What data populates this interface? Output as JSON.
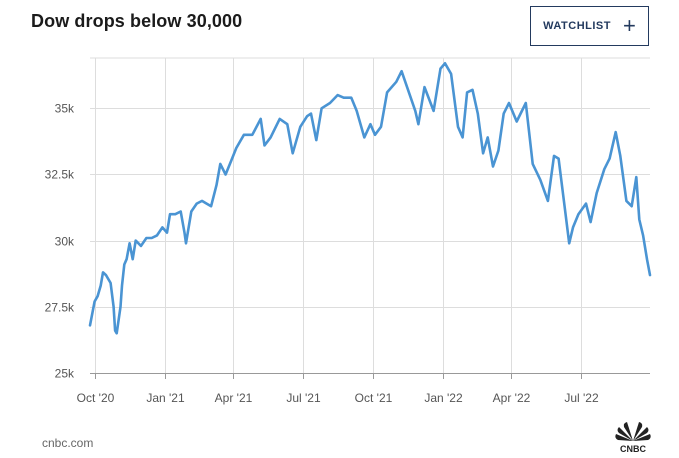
{
  "header": {
    "title": "Dow drops below 30,000"
  },
  "watchlist": {
    "label": "WATCHLIST",
    "icon": "plus-icon"
  },
  "footer": {
    "source": "cnbc.com",
    "logo_text": "CNBC"
  },
  "colors": {
    "line": "#4a94d3",
    "grid": "#dddddd",
    "button_border": "#233a5e"
  },
  "chart_data": {
    "type": "line",
    "title": "Dow drops below 30,000",
    "xlabel": "",
    "ylabel": "",
    "ylim": [
      25000,
      36900
    ],
    "xlim": [
      "2020-09-25",
      "2022-09-30"
    ],
    "y_ticks": [
      25000,
      27500,
      30000,
      32500,
      35000
    ],
    "y_tick_labels": [
      "25k",
      "27.5k",
      "30k",
      "32.5k",
      "35k"
    ],
    "x_ticks": [
      "2020-10-01",
      "2021-01-01",
      "2021-04-01",
      "2021-07-01",
      "2021-10-01",
      "2022-01-01",
      "2022-04-01",
      "2022-07-01"
    ],
    "x_tick_labels": [
      "Oct '20",
      "Jan '21",
      "Apr '21",
      "Jul '21",
      "Oct '21",
      "Jan '22",
      "Apr '22",
      "Jul '22"
    ],
    "grid": true,
    "series": [
      {
        "x": [
          "2020-09-25",
          "2020-10-01",
          "2020-10-05",
          "2020-10-09",
          "2020-10-12",
          "2020-10-16",
          "2020-10-22",
          "2020-10-26",
          "2020-10-28",
          "2020-10-30",
          "2020-11-04",
          "2020-11-06",
          "2020-11-09",
          "2020-11-12",
          "2020-11-16",
          "2020-11-20",
          "2020-11-24",
          "2020-12-01",
          "2020-12-08",
          "2020-12-15",
          "2020-12-22",
          "2020-12-29",
          "2021-01-04",
          "2021-01-08",
          "2021-01-15",
          "2021-01-22",
          "2021-01-27",
          "2021-01-29",
          "2021-02-05",
          "2021-02-12",
          "2021-02-19",
          "2021-02-25",
          "2021-03-03",
          "2021-03-10",
          "2021-03-15",
          "2021-03-22",
          "2021-03-29",
          "2021-04-05",
          "2021-04-15",
          "2021-04-26",
          "2021-05-07",
          "2021-05-12",
          "2021-05-20",
          "2021-06-01",
          "2021-06-11",
          "2021-06-18",
          "2021-06-28",
          "2021-07-07",
          "2021-07-12",
          "2021-07-19",
          "2021-07-26",
          "2021-08-06",
          "2021-08-16",
          "2021-08-24",
          "2021-09-03",
          "2021-09-10",
          "2021-09-20",
          "2021-09-28",
          "2021-10-04",
          "2021-10-12",
          "2021-10-20",
          "2021-11-01",
          "2021-11-08",
          "2021-11-26",
          "2021-11-30",
          "2021-12-08",
          "2021-12-20",
          "2021-12-29",
          "2022-01-04",
          "2022-01-12",
          "2022-01-21",
          "2022-01-27",
          "2022-02-02",
          "2022-02-09",
          "2022-02-16",
          "2022-02-23",
          "2022-03-01",
          "2022-03-08",
          "2022-03-15",
          "2022-03-22",
          "2022-03-29",
          "2022-04-08",
          "2022-04-20",
          "2022-04-29",
          "2022-05-09",
          "2022-05-19",
          "2022-05-27",
          "2022-06-02",
          "2022-06-09",
          "2022-06-16",
          "2022-06-21",
          "2022-06-28",
          "2022-07-08",
          "2022-07-14",
          "2022-07-22",
          "2022-08-01",
          "2022-08-08",
          "2022-08-16",
          "2022-08-22",
          "2022-08-30",
          "2022-09-06",
          "2022-09-12",
          "2022-09-16",
          "2022-09-21",
          "2022-09-26",
          "2022-09-30"
        ],
        "values": [
          26800,
          27700,
          27900,
          28300,
          28800,
          28700,
          28400,
          27500,
          26600,
          26500,
          27500,
          28300,
          29100,
          29300,
          29900,
          29300,
          30000,
          29800,
          30100,
          30100,
          30200,
          30500,
          30300,
          31000,
          31000,
          31100,
          30300,
          29900,
          31100,
          31400,
          31500,
          31400,
          31300,
          32100,
          32900,
          32500,
          33000,
          33500,
          34000,
          34000,
          34600,
          33600,
          33900,
          34600,
          34400,
          33300,
          34300,
          34700,
          34800,
          33800,
          35000,
          35200,
          35500,
          35400,
          35400,
          34900,
          33900,
          34400,
          34000,
          34300,
          35600,
          36000,
          36400,
          34900,
          34400,
          35800,
          34900,
          36500,
          36700,
          36300,
          34300,
          33900,
          35600,
          35700,
          34800,
          33300,
          33900,
          32800,
          33400,
          34800,
          35200,
          34500,
          35200,
          32900,
          32300,
          31500,
          33200,
          33100,
          31500,
          29900,
          30500,
          31000,
          31400,
          30700,
          31800,
          32700,
          33100,
          34100,
          33200,
          31500,
          31300,
          32400,
          30800,
          30200,
          29300,
          28700
        ]
      }
    ]
  }
}
